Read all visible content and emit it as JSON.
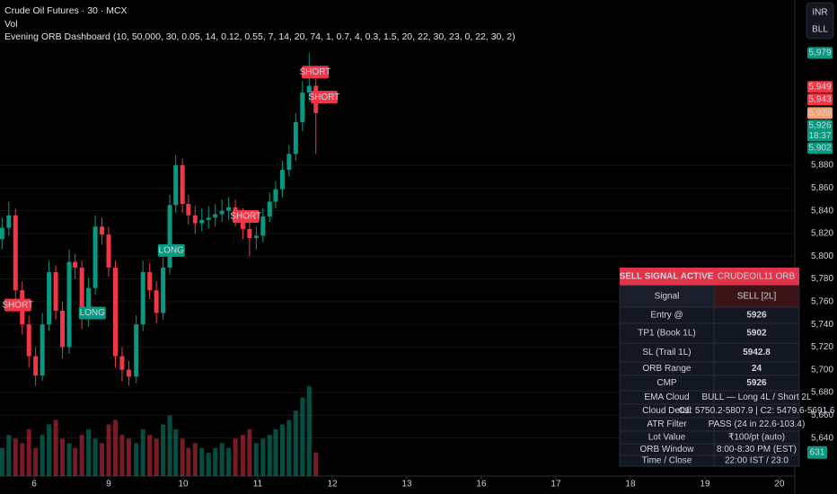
{
  "header": {
    "title": "Crude Oil Futures · 30 · MCX",
    "volume_label": "Vol",
    "indicator": "Evening ORB Dashboard (10, 50,000, 30, 0.05, 14, 0.12, 0.55, 7, 14, 20, 74, 1, 0.7, 4, 0.3, 1.5, 20, 22, 30, 23, 0, 22, 30, 2)"
  },
  "toolbar": [
    "INR",
    "BLL"
  ],
  "chart_data": {
    "type": "candlestick",
    "up_color": "#089981",
    "down_color": "#f23645",
    "xlim": [
      -0.458,
      10.205
    ],
    "ylim": [
      5606.5,
      6025.5
    ],
    "xticks": [
      {
        "value": 0,
        "label": "6"
      },
      {
        "value": 1,
        "label": "9"
      },
      {
        "value": 2,
        "label": "10"
      },
      {
        "value": 3,
        "label": "11"
      },
      {
        "value": 4,
        "label": "12"
      },
      {
        "value": 5,
        "label": "13"
      },
      {
        "value": 6,
        "label": "16"
      },
      {
        "value": 7,
        "label": "17"
      },
      {
        "value": 8,
        "label": "18"
      },
      {
        "value": 9,
        "label": "19"
      },
      {
        "value": 10,
        "label": "20"
      }
    ],
    "yticks": [
      {
        "value": 5880,
        "label": "5,880"
      },
      {
        "value": 5860,
        "label": "5,860"
      },
      {
        "value": 5840,
        "label": "5,840"
      },
      {
        "value": 5820,
        "label": "5,820"
      },
      {
        "value": 5800,
        "label": "5,800"
      },
      {
        "value": 5780,
        "label": "5,780"
      },
      {
        "value": 5760,
        "label": "5,760"
      },
      {
        "value": 5740,
        "label": "5,740"
      },
      {
        "value": 5720,
        "label": "5,720"
      },
      {
        "value": 5700,
        "label": "5,700"
      },
      {
        "value": 5680,
        "label": "5,680"
      },
      {
        "value": 5660,
        "label": "5,660"
      },
      {
        "value": 5640,
        "label": "5,640"
      }
    ],
    "x": [
      -0.43,
      -0.34,
      -0.25,
      -0.16,
      -0.07,
      0.02,
      0.11,
      0.2,
      0.29,
      0.38,
      0.47,
      0.55,
      0.64,
      0.73,
      0.82,
      0.91,
      1.0,
      1.09,
      1.18,
      1.27,
      1.37,
      1.46,
      1.55,
      1.64,
      1.73,
      1.82,
      1.9,
      1.99,
      2.07,
      2.16,
      2.25,
      2.34,
      2.43,
      2.52,
      2.61,
      2.7,
      2.8,
      2.89,
      2.98,
      3.07,
      3.16,
      3.24,
      3.33,
      3.42,
      3.51,
      3.6,
      3.69,
      3.78
    ],
    "open": [
      5815,
      5825,
      5836,
      5770,
      5740,
      5712,
      5695,
      5740,
      5786,
      5752,
      5720,
      5795,
      5790,
      5745,
      5772,
      5826,
      5819,
      5790,
      5712,
      5700,
      5694,
      5740,
      5786,
      5770,
      5750,
      5790,
      5845,
      5880,
      5846,
      5836,
      5829,
      5832,
      5834,
      5837,
      5840,
      5843,
      5835,
      5824,
      5816,
      5818,
      5835,
      5848,
      5859,
      5876,
      5890,
      5918,
      5944,
      5950
    ],
    "high": [
      5834,
      5848,
      5842,
      5778,
      5748,
      5720,
      5750,
      5796,
      5792,
      5760,
      5806,
      5802,
      5796,
      5781,
      5836,
      5834,
      5826,
      5796,
      5720,
      5708,
      5748,
      5796,
      5794,
      5778,
      5799,
      5854,
      5889,
      5886,
      5854,
      5844,
      5842,
      5844,
      5846,
      5850,
      5852,
      5850,
      5842,
      5830,
      5826,
      5842,
      5856,
      5866,
      5884,
      5898,
      5926,
      5954,
      5979,
      5956
    ],
    "low": [
      5806,
      5818,
      5762,
      5731,
      5702,
      5686,
      5690,
      5734,
      5744,
      5710,
      5714,
      5780,
      5736,
      5738,
      5766,
      5810,
      5782,
      5702,
      5690,
      5686,
      5688,
      5734,
      5762,
      5741,
      5744,
      5784,
      5838,
      5838,
      5828,
      5820,
      5822,
      5824,
      5826,
      5830,
      5832,
      5826,
      5815,
      5800,
      5806,
      5812,
      5830,
      5842,
      5852,
      5870,
      5884,
      5910,
      5936,
      5890
    ],
    "close": [
      5825,
      5836,
      5770,
      5740,
      5712,
      5695,
      5740,
      5786,
      5752,
      5720,
      5795,
      5790,
      5745,
      5772,
      5826,
      5819,
      5790,
      5712,
      5700,
      5694,
      5740,
      5786,
      5770,
      5750,
      5790,
      5845,
      5880,
      5846,
      5836,
      5829,
      5832,
      5834,
      5837,
      5840,
      5843,
      5835,
      5824,
      5816,
      5818,
      5835,
      5848,
      5859,
      5876,
      5890,
      5918,
      5944,
      5950,
      5926
    ],
    "volume": [
      750,
      1100,
      1000,
      880,
      1250,
      750,
      1100,
      1380,
      1500,
      1000,
      880,
      750,
      1100,
      1250,
      1000,
      880,
      1380,
      1500,
      1100,
      1000,
      880,
      1250,
      1100,
      1000,
      1380,
      1620,
      1250,
      1000,
      750,
      880,
      750,
      620,
      750,
      880,
      750,
      1000,
      1100,
      1250,
      880,
      1000,
      1100,
      1250,
      1380,
      1500,
      1750,
      2100,
      2400,
      631
    ],
    "volume_tag": {
      "value": 631,
      "label": "631",
      "color": "#089981"
    },
    "signals": [
      {
        "text": "SHORT",
        "x": -0.22,
        "price": 5757,
        "color": "#f23645"
      },
      {
        "text": "LONG",
        "x": 0.78,
        "price": 5750,
        "color": "#089981"
      },
      {
        "text": "LONG",
        "x": 1.84,
        "price": 5805,
        "color": "#089981"
      },
      {
        "text": "SHORT",
        "x": 2.84,
        "price": 5835,
        "color": "#f23645"
      },
      {
        "text": "SHORT",
        "x": 3.77,
        "price": 5962,
        "color": "#f23645"
      },
      {
        "text": "SHORT",
        "x": 3.89,
        "price": 5940,
        "color": "#f23645"
      }
    ],
    "price_tags": [
      {
        "value": 5979,
        "label": "5,979",
        "color": "#089981"
      },
      {
        "value": 5949,
        "label": "5,949",
        "color": "#f23645"
      },
      {
        "value": 5943,
        "label": "5,943",
        "color": "#f23645"
      },
      {
        "value": 5926,
        "label": "5,926",
        "color": "#f7a072"
      },
      {
        "value": 5926,
        "label": "5,926",
        "sub": "18:37",
        "color": "#089981"
      },
      {
        "value": 5902,
        "label": "5,902",
        "color": "#089981"
      }
    ]
  },
  "dashboard": {
    "title": "SELL SIGNAL ACTIVE",
    "subtitle": "CRUDEOIL11 ORB",
    "rows": [
      {
        "label": "Signal",
        "value": "SELL [2L]",
        "color": "#f23645"
      },
      {
        "label": "Entry @",
        "value": "5926",
        "color": "#ffffff"
      },
      {
        "label": "TP1 (Book 1L)",
        "value": "5902",
        "color": "#4caf50"
      },
      {
        "label": "SL (Trail 1L)",
        "value": "5942.8",
        "color": "#f23645"
      },
      {
        "label": "ORB Range",
        "value": "24",
        "color": "#ffffff"
      },
      {
        "label": "CMP",
        "value": "5926",
        "color": "#ffffff"
      },
      {
        "label": "EMA Cloud",
        "value": "BULL — Long 4L / Short 2L",
        "color": "#4caf50"
      },
      {
        "label": "Cloud Detail",
        "value": "C1: 5750.2-5807.9 | C2: 5479.6-5691.6",
        "color": "#4caf50"
      },
      {
        "label": "ATR Filter",
        "value": "PASS (24 in 22.6-103.4)",
        "color": "#4caf50"
      },
      {
        "label": "Lot Value",
        "value": "₹100/pt (auto)",
        "color": "#ffffff"
      },
      {
        "label": "ORB Window",
        "value": "8:00-8:30 PM (EST)",
        "color": "#ffd54f"
      },
      {
        "label": "Time / Close",
        "value": "22:00 IST / 23:0",
        "color": "#ffffff"
      }
    ]
  }
}
